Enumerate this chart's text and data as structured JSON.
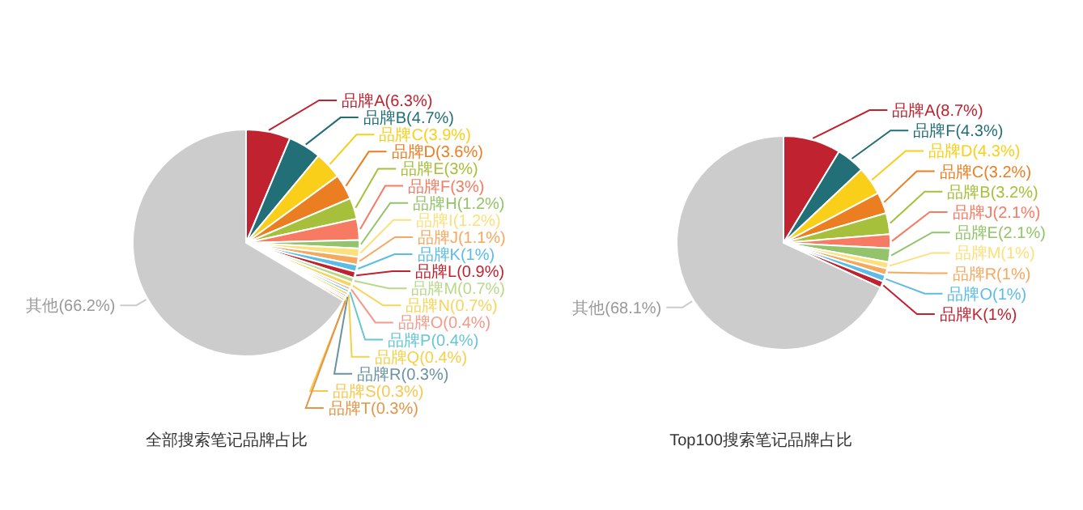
{
  "chart_data": [
    {
      "type": "pie",
      "title": "全部搜索笔记品牌占比",
      "categories": [
        "品牌A",
        "品牌B",
        "品牌C",
        "品牌D",
        "品牌E",
        "品牌F",
        "品牌H",
        "品牌I",
        "品牌J",
        "品牌K",
        "品牌L",
        "品牌M",
        "品牌N",
        "品牌O",
        "品牌P",
        "品牌Q",
        "品牌R",
        "品牌S",
        "品牌T",
        "其他"
      ],
      "values": [
        6.3,
        4.7,
        3.9,
        3.6,
        3,
        3,
        1.2,
        1.2,
        1.1,
        1,
        0.9,
        0.7,
        0.7,
        0.4,
        0.4,
        0.4,
        0.3,
        0.3,
        0.3,
        66.2
      ],
      "value_labels": [
        "(6.3%)",
        "(4.7%)",
        "(3.9%)",
        "(3.6%)",
        "(3%)",
        "(3%)",
        "(1.2%)",
        "(1.2%)",
        "(1.1%)",
        "(1%)",
        "(0.9%)",
        "(0.7%)",
        "(0.7%)",
        "(0.4%)",
        "(0.4%)",
        "(0.4%)",
        "(0.3%)",
        "(0.3%)",
        "(0.3%)",
        "(66.2%)"
      ],
      "colors": [
        "#c0222f",
        "#236f78",
        "#f9cf1a",
        "#ec7e22",
        "#a6c03b",
        "#f77a62",
        "#93c36a",
        "#fce07b",
        "#f6a85e",
        "#5bbde6",
        "#c0222f",
        "#b9d98a",
        "#f6d55c",
        "#f59a8a",
        "#67c7d4",
        "#f3d14a",
        "#6a93a0",
        "#f8c74f",
        "#e59546",
        "#cccccc"
      ]
    },
    {
      "type": "pie",
      "title": "Top100搜索笔记品牌占比",
      "categories": [
        "品牌A",
        "品牌F",
        "品牌D",
        "品牌C",
        "品牌B",
        "品牌J",
        "品牌E",
        "品牌M",
        "品牌R",
        "品牌O",
        "品牌K",
        "其他"
      ],
      "values": [
        8.7,
        4.3,
        4.3,
        3.2,
        3.2,
        2.1,
        2.1,
        1,
        1,
        1,
        1,
        68.1
      ],
      "value_labels": [
        "(8.7%)",
        "(4.3%)",
        "(4.3%)",
        "(3.2%)",
        "(3.2%)",
        "(2.1%)",
        "(2.1%)",
        "(1%)",
        "(1%)",
        "(1%)",
        "(1%)",
        "(68.1%)"
      ],
      "colors": [
        "#c0222f",
        "#236f78",
        "#f9cf1a",
        "#ec7e22",
        "#a6c03b",
        "#f77a62",
        "#93c36a",
        "#fce07b",
        "#f6a85e",
        "#5bbde6",
        "#c0222f",
        "#cccccc"
      ]
    }
  ]
}
